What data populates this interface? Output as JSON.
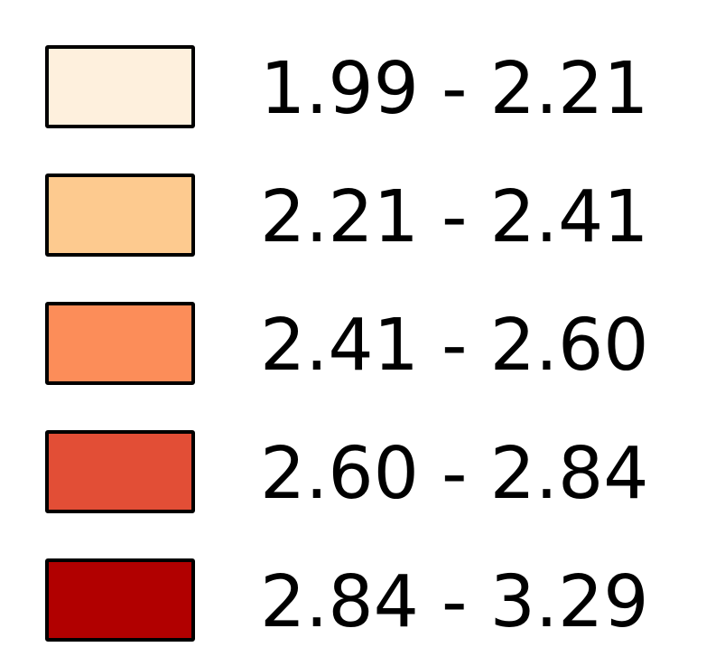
{
  "legend": {
    "items": [
      {
        "label": "1.99 - 2.21",
        "color": "#fef0dd"
      },
      {
        "label": "2.21 - 2.41",
        "color": "#fdca8f"
      },
      {
        "label": "2.41 - 2.60",
        "color": "#fc8d59"
      },
      {
        "label": "2.60 - 2.84",
        "color": "#e24e36"
      },
      {
        "label": "2.84 - 3.29",
        "color": "#b10000"
      }
    ]
  }
}
